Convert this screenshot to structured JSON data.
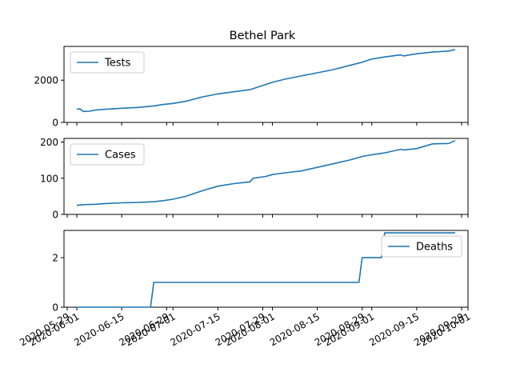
{
  "chart_data": {
    "type": "line",
    "title": "Bethel Park",
    "x_ticks": [
      "2020-05-29",
      "2020-06-01",
      "2020-06-15",
      "2020-06-29",
      "2020-07-01",
      "2020-07-15",
      "2020-07-29",
      "2020-08-01",
      "2020-08-15",
      "2020-08-29",
      "2020-09-01",
      "2020-09-15",
      "2020-09-29",
      "2020-10-01"
    ],
    "xlim": [
      "2020-05-28",
      "2020-10-01"
    ],
    "panels": [
      {
        "series": [
          {
            "name": "Tests",
            "x": [
              "2020-06-01",
              "2020-06-02",
              "2020-06-03",
              "2020-06-05",
              "2020-06-07",
              "2020-06-10",
              "2020-06-15",
              "2020-06-20",
              "2020-06-25",
              "2020-06-28",
              "2020-07-01",
              "2020-07-05",
              "2020-07-10",
              "2020-07-15",
              "2020-07-20",
              "2020-07-25",
              "2020-07-26",
              "2020-07-30",
              "2020-08-01",
              "2020-08-05",
              "2020-08-10",
              "2020-08-15",
              "2020-08-20",
              "2020-08-25",
              "2020-08-29",
              "2020-09-01",
              "2020-09-05",
              "2020-09-10",
              "2020-09-11",
              "2020-09-15",
              "2020-09-20",
              "2020-09-25",
              "2020-09-27"
            ],
            "y": [
              630,
              640,
              520,
              530,
              590,
              620,
              670,
              710,
              780,
              850,
              900,
              1000,
              1200,
              1350,
              1450,
              1550,
              1600,
              1800,
              1900,
              2050,
              2200,
              2350,
              2500,
              2700,
              2850,
              3000,
              3100,
              3200,
              3150,
              3250,
              3330,
              3380,
              3450
            ]
          }
        ],
        "ylim": [
          0,
          3600
        ],
        "yticks": [
          0,
          2000
        ],
        "legend": "upper-left"
      },
      {
        "series": [
          {
            "name": "Cases",
            "x": [
              "2020-06-01",
              "2020-06-03",
              "2020-06-07",
              "2020-06-10",
              "2020-06-15",
              "2020-06-20",
              "2020-06-25",
              "2020-06-28",
              "2020-07-01",
              "2020-07-05",
              "2020-07-10",
              "2020-07-15",
              "2020-07-20",
              "2020-07-25",
              "2020-07-26",
              "2020-07-30",
              "2020-08-01",
              "2020-08-05",
              "2020-08-10",
              "2020-08-15",
              "2020-08-20",
              "2020-08-25",
              "2020-08-29",
              "2020-09-01",
              "2020-09-05",
              "2020-09-10",
              "2020-09-11",
              "2020-09-15",
              "2020-09-20",
              "2020-09-25",
              "2020-09-27"
            ],
            "y": [
              25,
              27,
              28,
              30,
              32,
              33,
              35,
              38,
              42,
              50,
              65,
              78,
              85,
              90,
              100,
              105,
              110,
              115,
              120,
              130,
              140,
              150,
              160,
              165,
              170,
              180,
              178,
              182,
              195,
              196,
              204
            ]
          }
        ],
        "ylim": [
          0,
          210
        ],
        "yticks": [
          0,
          100,
          200
        ],
        "legend": "upper-left"
      },
      {
        "series": [
          {
            "name": "Deaths",
            "x": [
              "2020-06-01",
              "2020-06-24",
              "2020-06-25",
              "2020-08-28",
              "2020-08-29",
              "2020-09-04",
              "2020-09-05",
              "2020-09-27"
            ],
            "y": [
              0,
              0,
              1,
              1,
              2,
              2,
              3,
              3
            ]
          }
        ],
        "ylim": [
          0,
          3.1
        ],
        "yticks": [
          0,
          2
        ],
        "legend": "upper-right"
      }
    ]
  }
}
